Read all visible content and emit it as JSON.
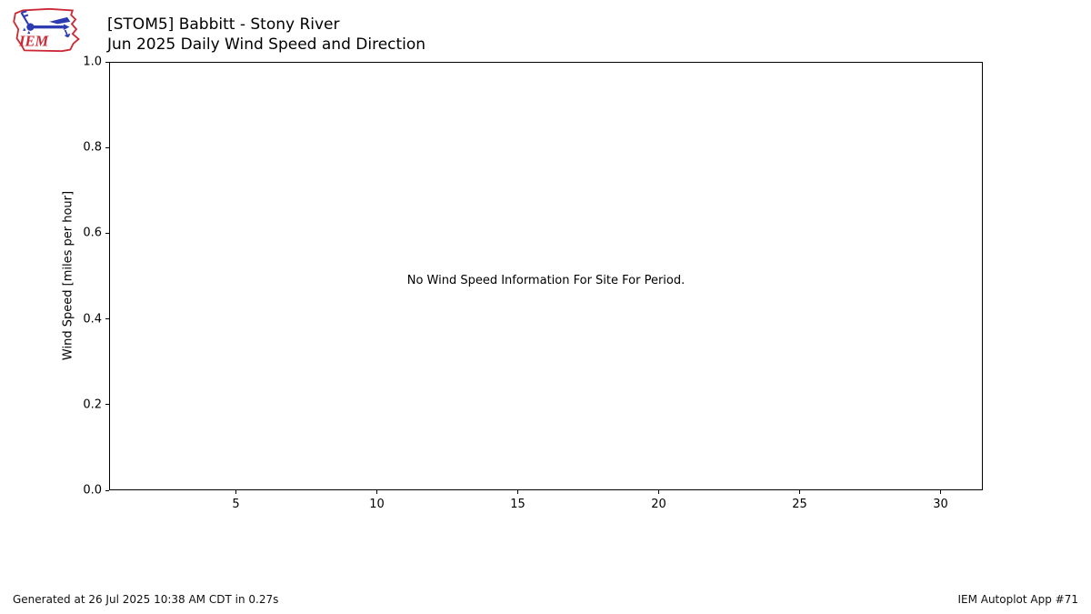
{
  "header": {
    "title": "[STOM5] Babbitt - Stony River",
    "subtitle": "Jun 2025 Daily Wind Speed and Direction"
  },
  "logo": {
    "text": "IEM"
  },
  "colors": {
    "logo_red": "#cc2936",
    "logo_blue": "#2d3bb3",
    "axis": "#000000",
    "background": "#ffffff"
  },
  "footer": {
    "generated": "Generated at 26 Jul 2025 10:38 AM CDT in 0.27s",
    "app": "IEM Autoplot App #71"
  },
  "chart_data": {
    "type": "line",
    "title": "[STOM5] Babbitt - Stony River",
    "subtitle": "Jun 2025 Daily Wind Speed and Direction",
    "xlabel": "",
    "ylabel": "Wind Speed [miles per hour]",
    "xlim": [
      0.5,
      31.5
    ],
    "ylim": [
      0.0,
      1.0
    ],
    "x_ticks": [
      5,
      10,
      15,
      20,
      25,
      30
    ],
    "x_tick_labels": [
      "5",
      "10",
      "15",
      "20",
      "25",
      "30"
    ],
    "y_ticks": [
      0.0,
      0.2,
      0.4,
      0.6,
      0.8,
      1.0
    ],
    "y_tick_labels": [
      "0.0",
      "0.2",
      "0.4",
      "0.6",
      "0.8",
      "1.0"
    ],
    "grid": false,
    "legend": "none",
    "series": [],
    "no_data_message": "No Wind Speed Information For Site For Period."
  }
}
